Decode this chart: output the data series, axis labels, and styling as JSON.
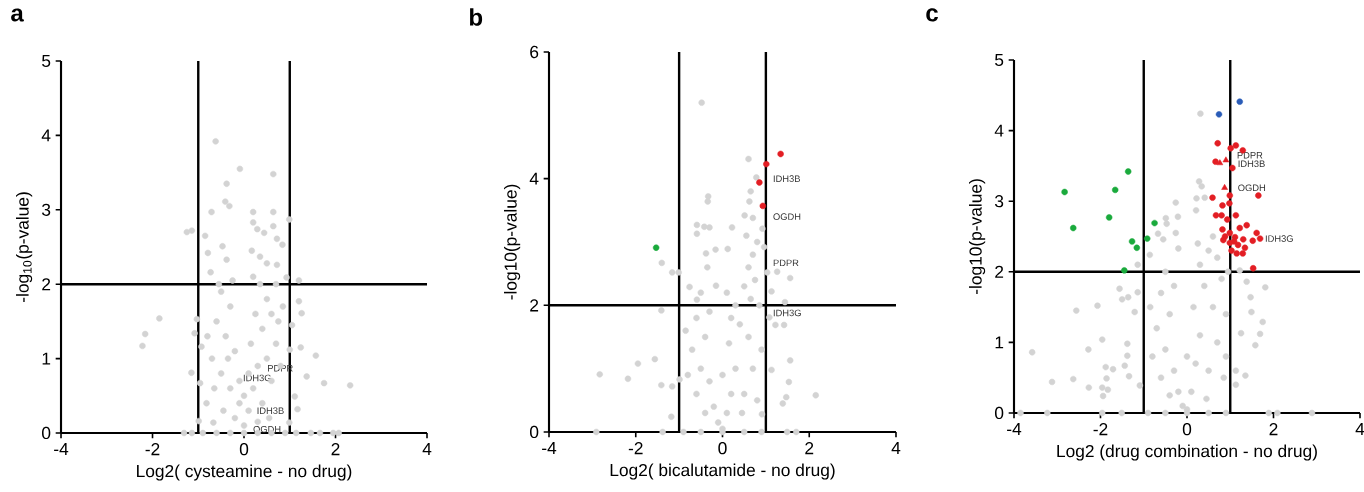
{
  "chart_data": [
    {
      "type": "scatter",
      "title": "a",
      "xlabel": "Log2( cysteamine - no drug)",
      "ylabel": "-log$_{10}$(p-value)",
      "xlim": [
        -4,
        4
      ],
      "ylim": [
        0,
        5
      ],
      "xticks": [
        -4,
        -2,
        0,
        2,
        4
      ],
      "yticks": [
        0,
        1,
        2,
        3,
        4,
        5
      ],
      "marker": "circle",
      "ref_lines": [
        {
          "axis": "x",
          "value": -1,
          "color": "#000000"
        },
        {
          "axis": "x",
          "value": 1,
          "color": "#000000"
        },
        {
          "axis": "y",
          "value": 2,
          "color": "#000000"
        }
      ],
      "annotations": [
        {
          "text": "PDPR",
          "x": 0.4,
          "y": 0.87
        },
        {
          "text": "IDH3G",
          "x": -0.13,
          "y": 0.74
        },
        {
          "text": "IDH3B",
          "x": 0.17,
          "y": 0.3
        },
        {
          "text": "OGDH",
          "x": 0.09,
          "y": 0.05
        }
      ],
      "series": [
        {
          "color": "#d3d3d3",
          "x": [
            -0.62,
            -0.09,
            0.64,
            -0.38,
            -0.41,
            -0.32,
            -0.71,
            0.2,
            0.64,
            0.99,
            -1.25,
            -1.14,
            -0.85,
            0.2,
            0.29,
            0.44,
            0.64,
            0.72,
            0.84,
            -0.47,
            -0.79,
            0.17,
            0.35,
            0.5,
            0.72,
            -0.73,
            -0.38,
            0.93,
            1.2,
            -1.85,
            -2.16,
            -2.22,
            -1.03,
            -1.08,
            -0.93,
            -1.15,
            -0.96,
            -0.82,
            -0.67,
            -0.99,
            1.2,
            1.26,
            1.05,
            1.0,
            1.24,
            1.57,
            1.37,
            1.75,
            2.32,
            1.11,
            1.17,
            0.99,
            -1.31,
            -1.14,
            1.14,
            1.46,
            1.66,
            2.07,
            1.95,
            -0.5,
            -0.3,
            -0.6,
            -0.4,
            -0.2,
            -0.7,
            -0.5,
            -0.3,
            -0.1,
            -0.2,
            0.0,
            0.1,
            0.2,
            0.3,
            0.15,
            0.4,
            0.25,
            0.5,
            0.35,
            0.6,
            0.7,
            0.5,
            0.6,
            0.4,
            0.8,
            0.75,
            -0.8,
            -0.65,
            -0.45,
            0.55,
            0.3,
            -0.1,
            0.1,
            -0.35,
            0.0,
            0.85,
            -0.55,
            0.2,
            0.7,
            -0.25,
            -0.9,
            -0.6,
            -0.3,
            0.0,
            0.3,
            0.6,
            0.9
          ],
          "values": [
            3.92,
            3.55,
            3.48,
            3.35,
            3.11,
            3.05,
            2.97,
            2.97,
            2.97,
            2.87,
            2.7,
            2.72,
            2.65,
            2.83,
            2.74,
            2.69,
            2.78,
            2.61,
            2.53,
            2.51,
            2.42,
            2.45,
            2.37,
            2.28,
            2.26,
            2.16,
            2.33,
            2.09,
            2.05,
            1.54,
            1.33,
            1.17,
            1.53,
            1.34,
            1.16,
            0.81,
            0.67,
            0.4,
            0.14,
            0.16,
            1.77,
            1.61,
            1.45,
            1.12,
            1.15,
            1.04,
            0.76,
            0.67,
            0.64,
            0.49,
            0.32,
            0.14,
            0,
            0,
            0,
            0,
            0,
            0,
            0,
            1.9,
            1.7,
            1.5,
            1.3,
            1.1,
            1.0,
            0.8,
            0.6,
            0.4,
            0.2,
            0.1,
            0.3,
            0.6,
            0.9,
            1.2,
            1.4,
            1.6,
            1.8,
            2.0,
            1.6,
            1.2,
            1.0,
            0.7,
            0.4,
            0.9,
            1.5,
            1.3,
            0.6,
            0.3,
            0.2,
            0.15,
            0.7,
            0.8,
            1.0,
            0.5,
            1.7,
            2.0,
            2.1,
            2.0,
            2.05,
            0,
            0,
            0,
            0,
            0,
            0,
            0
          ]
        }
      ]
    },
    {
      "type": "scatter",
      "title": "b",
      "xlabel": "Log2( bicalutamide - no drug)",
      "ylabel": "-log10(p-value)",
      "xlim": [
        -4,
        4
      ],
      "ylim": [
        0,
        6
      ],
      "xticks": [
        -4,
        -2,
        0,
        2,
        4
      ],
      "yticks": [
        0,
        2,
        4,
        6
      ],
      "marker": "circle",
      "ref_lines": [
        {
          "axis": "x",
          "value": -1,
          "color": "#000000"
        },
        {
          "axis": "x",
          "value": 1,
          "color": "#000000"
        },
        {
          "axis": "y",
          "value": 2,
          "color": "#000000"
        }
      ],
      "annotations": [
        {
          "text": "IDH3B",
          "x": 1.05,
          "y": 4.0
        },
        {
          "text": "OGDH",
          "x": 1.05,
          "y": 3.4
        },
        {
          "text": "PDPR",
          "x": 1.05,
          "y": 2.67
        },
        {
          "text": "IDH3G",
          "x": 1.05,
          "y": 1.88
        }
      ],
      "series": [
        {
          "color": "#d3d3d3",
          "x": [
            -0.48,
            0.6,
            0.78,
            0.65,
            0.62,
            -0.33,
            -0.34,
            -0.59,
            -0.59,
            -0.42,
            -0.3,
            0.22,
            0.51,
            0.7,
            0.92,
            0.96,
            -0.16,
            0.12,
            -1.4,
            -1.01,
            -1.16,
            -0.38,
            -0.35,
            1.26,
            1.56,
            1.03,
            1.13,
            1.44,
            -1.41,
            -0.59,
            -0.76,
            -0.15,
            1.08,
            1.22,
            1.42,
            -1.56,
            -1.95,
            -2.18,
            -2.83,
            -1.41,
            -1.16,
            -1.18,
            -0.99,
            1.56,
            1.53,
            1.47,
            2.15,
            1.39,
            1.13,
            0.91,
            -2.91,
            1.7,
            1.49,
            -1.38,
            -0.5,
            -0.6,
            -0.4,
            -0.7,
            -0.5,
            -0.3,
            -0.6,
            -0.2,
            -0.1,
            0.0,
            0.1,
            0.2,
            0.3,
            0.15,
            0.4,
            0.3,
            0.5,
            0.6,
            0.7,
            0.8,
            0.55,
            0.75,
            0.85,
            0.6,
            0.7,
            0.5,
            0.8,
            -0.8,
            -0.85,
            -0.3,
            0.9,
            0.45,
            -0.4,
            0.0,
            0.2,
            0.1,
            0.65,
            -0.9,
            -0.5,
            0.0,
            0.5,
            0.9
          ],
          "values": [
            5.2,
            4.31,
            4.02,
            3.8,
            3.64,
            3.72,
            3.64,
            3.27,
            3.13,
            3.24,
            3.23,
            3.23,
            3.42,
            3.38,
            3.21,
            2.92,
            2.88,
            2.89,
            2.67,
            2.52,
            2.52,
            2.82,
            2.6,
            2.53,
            2.43,
            2.52,
            2.22,
            2.05,
            1.92,
            2.09,
            2.29,
            2.31,
            1.81,
            1.69,
            1.69,
            1.15,
            1.08,
            0.84,
            0.91,
            0.74,
            0.72,
            0.24,
            0.83,
            1.13,
            0.79,
            0.55,
            0.58,
            0.45,
            0.98,
            0.28,
            0,
            0,
            0,
            0,
            2.2,
            1.8,
            1.5,
            1.3,
            1.0,
            0.8,
            0.6,
            0.4,
            0.15,
            0.05,
            0.3,
            0.6,
            1.0,
            1.4,
            1.7,
            2.0,
            2.3,
            2.6,
            2.8,
            3.0,
            3.1,
            2.4,
            2.0,
            1.5,
            1.0,
            0.6,
            0.5,
            0.9,
            1.6,
            1.9,
            1.3,
            0.3,
            0.3,
            0.9,
            1.8,
            2.2,
            2.1,
            0,
            0,
            0,
            0,
            0
          ]
        },
        {
          "color": "#1aaa3c",
          "x": [
            -1.53
          ],
          "values": [
            2.91
          ]
        },
        {
          "color": "#e31e24",
          "x": [
            1.34,
            1.01,
            0.85,
            0.93
          ],
          "values": [
            4.39,
            4.23,
            3.94,
            3.57
          ]
        }
      ]
    },
    {
      "type": "scatter",
      "title": "c",
      "xlabel": "Log2 (drug combination - no drug)",
      "ylabel": "-log10(p-value)",
      "xlim": [
        -4,
        4
      ],
      "ylim": [
        0,
        5
      ],
      "xticks": [
        -4,
        -2,
        0,
        2,
        4
      ],
      "yticks": [
        0,
        1,
        2,
        3,
        4,
        5
      ],
      "marker": "circle",
      "ref_lines": [
        {
          "axis": "x",
          "value": -1,
          "color": "#000000"
        },
        {
          "axis": "x",
          "value": 1,
          "color": "#000000"
        },
        {
          "axis": "y",
          "value": 2,
          "color": "#000000"
        }
      ],
      "annotations": [
        {
          "text": "PDPR",
          "x": 1.04,
          "y": 3.65
        },
        {
          "text": "IDH3B",
          "x": 1.06,
          "y": 3.53
        },
        {
          "text": "OGDH",
          "x": 1.06,
          "y": 3.19
        },
        {
          "text": "IDH3G",
          "x": 1.69,
          "y": 2.47
        }
      ],
      "series": [
        {
          "color": "#d3d3d3",
          "x": [
            0.31,
            0.28,
            0.34,
            0.22,
            0.41,
            -0.26,
            0.21,
            -0.21,
            -0.49,
            -0.47,
            -0.67,
            -0.26,
            -0.55,
            -0.2,
            -0.86,
            -1.14,
            -1.56,
            -1.5,
            -1.36,
            -1.14,
            -2.56,
            -2.07,
            -1.21,
            -1.96,
            -2.28,
            -3.58,
            -1.38,
            -1.38,
            -3.12,
            -2.63,
            -2.27,
            -1.88,
            -1.71,
            -1.86,
            -1.96,
            -1.83,
            -1.94,
            -1.44,
            -1.34,
            -1.09,
            1.81,
            1.38,
            1.47,
            1.49,
            1.75,
            1.69,
            1.58,
            1.25,
            1.13,
            1.35,
            1.13,
            2.89,
            2.09,
            1.89,
            -3.23,
            -3.85,
            -1.51,
            -1.96,
            1.22,
            -0.5,
            -0.6,
            -0.4,
            -0.7,
            -0.5,
            -0.3,
            -0.6,
            -0.2,
            -0.1,
            0.0,
            0.1,
            0.2,
            0.3,
            0.15,
            0.4,
            0.3,
            0.5,
            0.6,
            0.7,
            0.8,
            0.6,
            0.7,
            0.5,
            0.85,
            -0.85,
            -0.8,
            0.9,
            0.45,
            -0.4,
            0.0,
            0.25,
            0.95,
            -0.3,
            0.9,
            -0.9,
            -0.5,
            0.0,
            0.5,
            0.9
          ],
          "values": [
            4.24,
            3.28,
            3.21,
            3.04,
            3.05,
            2.98,
            2.87,
            2.78,
            2.76,
            2.68,
            2.54,
            2.55,
            2.46,
            2.33,
            2.24,
            2.1,
            1.76,
            1.61,
            1.64,
            1.71,
            1.45,
            1.52,
            1.43,
            1.04,
            0.9,
            0.86,
            0.98,
            0.81,
            0.44,
            0.48,
            0.36,
            0.65,
            0.62,
            0.49,
            0.36,
            0.33,
            0.24,
            0.67,
            0.52,
            0.39,
            1.78,
            1.86,
            1.64,
            1.43,
            1.29,
            1.12,
            0.96,
            1.13,
            0.6,
            0.53,
            0.4,
            0,
            0,
            0,
            0,
            0,
            0,
            0,
            2.02,
            2.0,
            1.7,
            1.4,
            1.2,
            0.9,
            0.6,
            0.5,
            0.3,
            0.1,
            0.05,
            0.3,
            0.7,
            1.1,
            1.5,
            1.8,
            2.1,
            2.3,
            2.5,
            2.2,
            1.9,
            1.5,
            1.0,
            0.6,
            0.5,
            1.5,
            0.8,
            1.4,
            0.2,
            0.25,
            0.8,
            2.4,
            2.0,
            1.8,
            0.8,
            0,
            0,
            0,
            0,
            0
          ]
        },
        {
          "color": "#1aaa3c",
          "x": [
            -2.83,
            -2.63,
            -1.8,
            -1.66,
            -1.36,
            -1.27,
            -1.16,
            -0.92,
            -0.75,
            -1.45
          ],
          "values": [
            3.13,
            2.62,
            2.77,
            3.16,
            3.42,
            2.43,
            2.34,
            2.47,
            2.69,
            2.02
          ]
        },
        {
          "color": "#e31e24",
          "x": [
            0.71,
            1.01,
            1.13,
            1.29,
            0.66,
            1.05,
            0.59,
            1.65,
            0.99,
            0.98,
            0.82,
            0.67,
            0.8,
            1.13,
            0.93,
            1.38,
            1.22,
            0.82,
            0.99,
            1.61,
            1.69,
            0.88,
            1.11,
            1.3,
            1.52,
            0.99,
            1.18,
            1.34,
            1.03,
            1.15,
            1.29,
            1.53,
            0.84,
            1.09
          ],
          "values": [
            3.82,
            3.75,
            3.79,
            3.72,
            3.56,
            3.47,
            3.05,
            3.08,
            3.08,
            2.97,
            2.94,
            2.8,
            2.8,
            2.8,
            2.74,
            2.66,
            2.62,
            2.6,
            2.55,
            2.55,
            2.47,
            2.5,
            2.49,
            2.46,
            2.44,
            2.41,
            2.38,
            2.34,
            2.3,
            2.26,
            2.26,
            2.05,
            2.45,
            2.43
          ]
        },
        {
          "color": "#e31e24",
          "marker": "triangle",
          "x": [
            0.9,
            0.76,
            0.87
          ],
          "values": [
            3.58,
            3.54,
            3.19
          ]
        },
        {
          "color": "#2a5cb8",
          "x": [
            0.74,
            1.22
          ],
          "values": [
            4.23,
            4.41
          ]
        }
      ]
    }
  ]
}
